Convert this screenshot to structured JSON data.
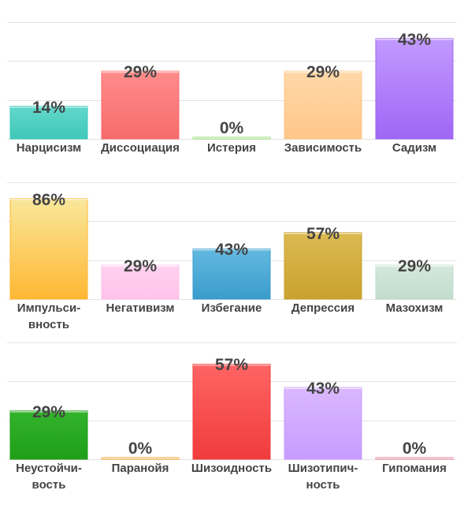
{
  "chart_data": [
    {
      "type": "bar",
      "ylim": [
        0,
        50
      ],
      "grid": true,
      "categories": [
        "Нарцисизм",
        "Диссоциация",
        "Истерия",
        "Зависимость",
        "Садизм"
      ],
      "values": [
        14,
        29,
        0,
        29,
        43
      ],
      "value_labels": [
        "14%",
        "29%",
        "0%",
        "29%",
        "43%"
      ],
      "colors": [
        [
          "#62d8cc",
          "#3ec8b8"
        ],
        [
          "#ff8c8c",
          "#f76b6b"
        ],
        [
          "#a8e889",
          "#8fd96d"
        ],
        [
          "#ffd8a8",
          "#ffc68a"
        ],
        [
          "#c29aff",
          "#a066f5"
        ]
      ]
    },
    {
      "type": "bar",
      "ylim": [
        0,
        100
      ],
      "grid": true,
      "categories": [
        "Импульси-вность",
        "Негативизм",
        "Избегание",
        "Депрессия",
        "Мазохизм"
      ],
      "values": [
        86,
        29,
        43,
        57,
        29
      ],
      "value_labels": [
        "86%",
        "29%",
        "43%",
        "57%",
        "29%"
      ],
      "colors": [
        [
          "#f9e79a",
          "#ffb733"
        ],
        [
          "#ffd2f0",
          "#ffc2ea"
        ],
        [
          "#63b9e0",
          "#3a9ccc"
        ],
        [
          "#dcba52",
          "#c9a22e"
        ],
        [
          "#d4e8dc",
          "#c0dccc"
        ]
      ]
    },
    {
      "type": "bar",
      "ylim": [
        0,
        70
      ],
      "grid": true,
      "categories": [
        "Неустойчи-вость",
        "Паранойя",
        "Шизоидность",
        "Шизотипич-ность",
        "Гипомания"
      ],
      "values": [
        29,
        0,
        57,
        43,
        0
      ],
      "value_labels": [
        "29%",
        "0%",
        "57%",
        "43%",
        "0%"
      ],
      "colors": [
        [
          "#34b32c",
          "#1f9e18"
        ],
        [
          "#ffc060",
          "#f0a020"
        ],
        [
          "#ff6464",
          "#f03c3c"
        ],
        [
          "#dbb8ff",
          "#c79cff"
        ],
        [
          "#f0a0b8",
          "#e07890"
        ]
      ]
    }
  ]
}
